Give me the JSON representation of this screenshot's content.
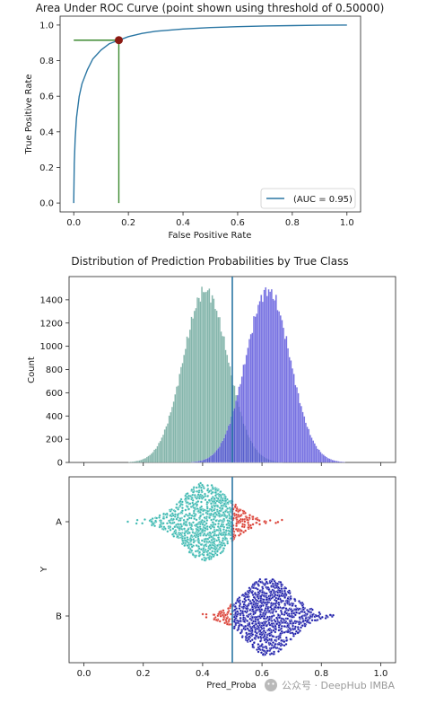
{
  "chart_data": [
    {
      "type": "line",
      "title": "Area Under ROC Curve (point shown using threshold of 0.50000)",
      "xlabel": "False Positive Rate",
      "ylabel": "True Positive Rate",
      "xlim": [
        -0.05,
        1.05
      ],
      "ylim": [
        -0.05,
        1.05
      ],
      "xticks": [
        "0.0",
        "0.2",
        "0.4",
        "0.6",
        "0.8",
        "1.0"
      ],
      "yticks": [
        "0.0",
        "0.2",
        "0.4",
        "0.6",
        "0.8",
        "1.0"
      ],
      "legend": "lower right",
      "series": [
        {
          "name": "(AUC = 0.95)",
          "color": "#2a76a3",
          "x": [
            0,
            0.002,
            0.005,
            0.01,
            0.02,
            0.03,
            0.05,
            0.07,
            0.1,
            0.13,
            0.165,
            0.2,
            0.25,
            0.3,
            0.4,
            0.5,
            0.6,
            0.7,
            0.8,
            0.9,
            1.0
          ],
          "y": [
            0,
            0.22,
            0.36,
            0.48,
            0.6,
            0.67,
            0.75,
            0.81,
            0.86,
            0.895,
            0.915,
            0.935,
            0.953,
            0.965,
            0.978,
            0.986,
            0.991,
            0.995,
            0.997,
            0.999,
            1.0
          ]
        }
      ],
      "threshold_point": {
        "x": 0.165,
        "y": 0.915,
        "color": "#8b1a12"
      },
      "guide_lines_color": "#3c8a30"
    },
    {
      "type": "histogram",
      "title": "Distribution of Prediction Probabilities by True Class",
      "xlabel": "",
      "ylabel": "Count",
      "xlim": [
        -0.05,
        1.05
      ],
      "ylim": [
        0,
        1600
      ],
      "yticks": [
        "0",
        "200",
        "400",
        "600",
        "800",
        "1000",
        "1200",
        "1400"
      ],
      "threshold_line": 0.5,
      "series": [
        {
          "color": "#5c9e90",
          "mean": 0.41,
          "sd": 0.075,
          "peak": 1480
        },
        {
          "color": "#4a43d8",
          "mean": 0.62,
          "sd": 0.075,
          "peak": 1480
        }
      ]
    },
    {
      "type": "scatter",
      "subtype": "swarm",
      "xlabel": "Pred_Proba",
      "ylabel": "Y",
      "xlim": [
        -0.05,
        1.05
      ],
      "xticks": [
        "0.0",
        "0.2",
        "0.4",
        "0.6",
        "0.8",
        "1.0"
      ],
      "categories": [
        "A",
        "B"
      ],
      "threshold_line": 0.5,
      "series": [
        {
          "category": "A",
          "mean": 0.41,
          "sd": 0.075,
          "min": 0.11,
          "max": 0.69,
          "color_below": "#3ab8b0",
          "color_above": "#d9392e"
        },
        {
          "category": "B",
          "mean": 0.62,
          "sd": 0.075,
          "min": 0.32,
          "max": 0.9,
          "color_below": "#d9392e",
          "color_above": "#1a1aa8"
        }
      ]
    }
  ],
  "watermark": "公众号 · DeepHub IMBA"
}
